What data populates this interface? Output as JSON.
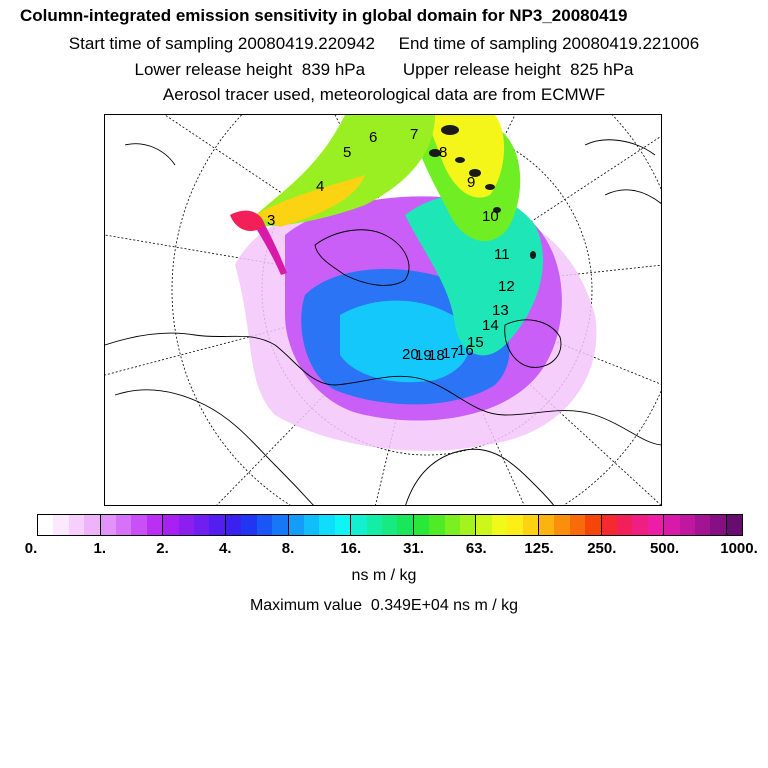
{
  "header": {
    "title": "Column-integrated emission sensitivity in global domain for NP3_20080419",
    "sampling": "Start time of sampling 20080419.220942     End time of sampling 20080419.221006",
    "release": "Lower release height  839 hPa        Upper release height  825 hPa",
    "info": "Aerosol tracer used, meteorological data are from ECMWF"
  },
  "map": {
    "day_markers": [
      "3",
      "4",
      "5",
      "6",
      "7",
      "8",
      "9",
      "10",
      "11",
      "12",
      "13",
      "14",
      "15",
      "16",
      "17",
      "18",
      "19",
      "20"
    ]
  },
  "colorbar": {
    "colors": [
      "#ffffff",
      "#fde9ff",
      "#f6cffd",
      "#edb3fb",
      "#e293fa",
      "#d672f8",
      "#c950f6",
      "#bb2ff4",
      "#a820f2",
      "#8c1ef0",
      "#6f1ff0",
      "#531ff0",
      "#3a21f0",
      "#2036f2",
      "#1a55f5",
      "#1778f7",
      "#149cf9",
      "#12bdfb",
      "#10dcfc",
      "#0ff5f5",
      "#12f0cf",
      "#14eda6",
      "#16ea80",
      "#18e75a",
      "#2ae838",
      "#4fec26",
      "#7af020",
      "#a4f31d",
      "#cdf61b",
      "#f1f91a",
      "#fcee16",
      "#fcd312",
      "#fbb30f",
      "#fa8f0c",
      "#f86a0a",
      "#f64508",
      "#f42a30",
      "#f21f58",
      "#f01d82",
      "#ee1da6",
      "#d81aa8",
      "#bf17a0",
      "#a31492",
      "#861083",
      "#690c6f"
    ],
    "tick_labels": [
      "0.",
      "1.",
      "2.",
      "4.",
      "8.",
      "16.",
      "31.",
      "63.",
      "125.",
      "250.",
      "500.",
      "1000."
    ],
    "units": "ns m / kg",
    "max_value": "Maximum value  0.349E+04 ns m / kg"
  }
}
